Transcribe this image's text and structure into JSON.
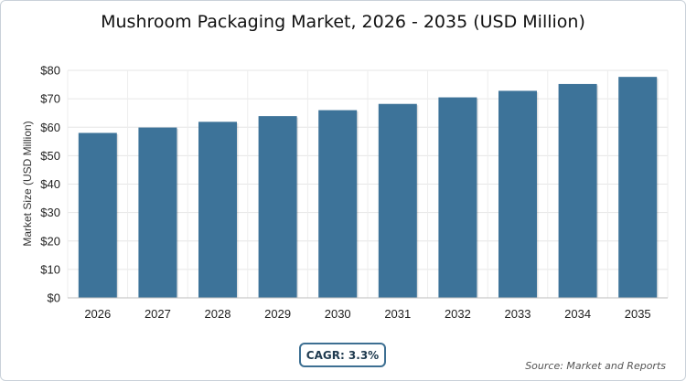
{
  "chart_data": {
    "type": "bar",
    "title": "Mushroom Packaging Market, 2026 - 2035 (USD Million)",
    "xlabel": "",
    "ylabel": "Market Size (USD Million)",
    "categories": [
      "2026",
      "2027",
      "2028",
      "2029",
      "2030",
      "2031",
      "2032",
      "2033",
      "2034",
      "2035"
    ],
    "values": [
      58.0,
      59.9,
      61.9,
      63.9,
      66.0,
      68.2,
      70.5,
      72.8,
      75.2,
      77.7
    ],
    "ylim": [
      0,
      80
    ],
    "yticks": [
      0,
      10,
      20,
      30,
      40,
      50,
      60,
      70,
      80
    ],
    "ytick_labels": [
      "$0",
      "$10",
      "$20",
      "$30",
      "$40",
      "$50",
      "$60",
      "$70",
      "$80"
    ],
    "grid": true,
    "bar_color": "#3d7399"
  },
  "cagr_label": "CAGR: 3.3%",
  "source": "Source: Market and Reports"
}
